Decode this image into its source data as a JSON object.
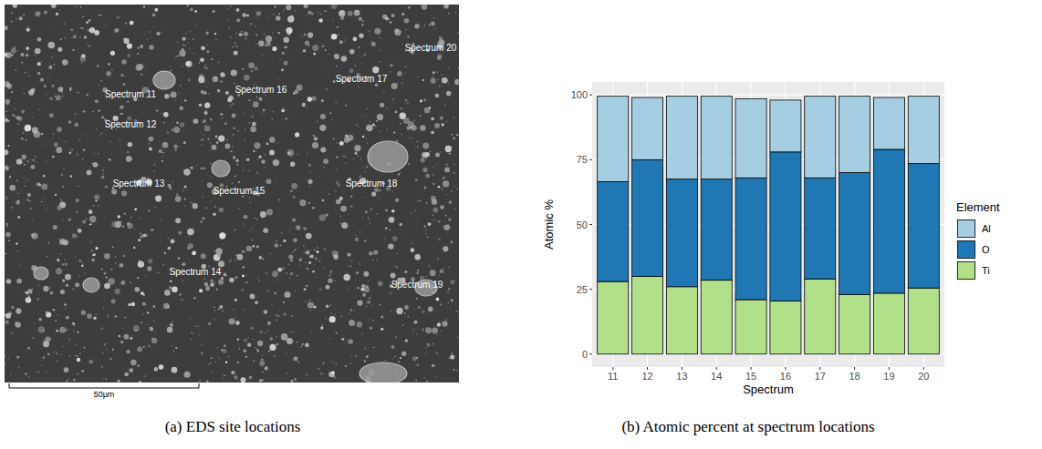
{
  "chart_data": {
    "type": "bar",
    "stacked": true,
    "caption": "(b) Atomic percent at spectrum locations",
    "x_label": "Spectrum",
    "y_label": "Atomic %",
    "categories": [
      "11",
      "12",
      "13",
      "14",
      "15",
      "16",
      "17",
      "18",
      "19",
      "20"
    ],
    "series": [
      {
        "name": "Al",
        "color": "#a6cee3",
        "values": [
          33,
          24,
          32,
          32,
          30.5,
          20,
          31.5,
          29.5,
          20,
          26
        ]
      },
      {
        "name": "O",
        "color": "#1f78b4",
        "values": [
          38.5,
          45,
          41.5,
          39,
          47,
          57.5,
          39,
          47,
          55.5,
          48
        ]
      },
      {
        "name": "Ti",
        "color": "#b2df8a",
        "values": [
          28,
          30,
          26,
          28.5,
          21,
          20.5,
          29,
          23,
          23.5,
          25.5
        ]
      }
    ],
    "legend_title": "Element",
    "legend": "right",
    "ylim": [
      -5,
      105
    ],
    "yticks": [
      0,
      25,
      50,
      75,
      100
    ],
    "grid": true
  },
  "image_panel": {
    "caption": "(a) EDS site locations",
    "scale_bar": "50µm",
    "labels": [
      "Spectrum 11",
      "Spectrum 12",
      "Spectrum 13",
      "Spectrum 14",
      "Spectrum 15",
      "Spectrum 16",
      "Spectrum 17",
      "Spectrum 18",
      "Spectrum 19",
      "Spectrum 20"
    ]
  }
}
